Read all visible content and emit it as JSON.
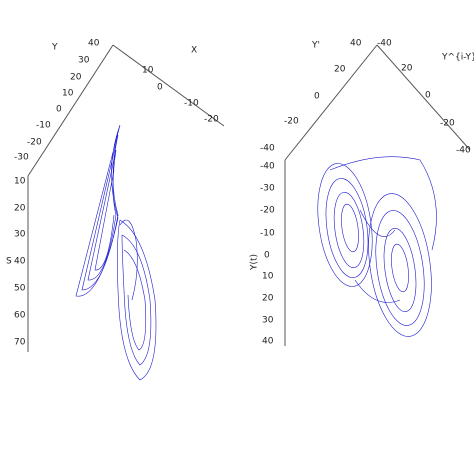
{
  "left_panel": {
    "axis_y": "Y",
    "axis_x": "X",
    "axis_z": "S",
    "apex": "40",
    "y_ticks": [
      "30",
      "20",
      "10",
      "0",
      "-10",
      "-20",
      "-30"
    ],
    "x_ticks": [
      "10",
      "0",
      "-10",
      "-20"
    ],
    "z_ticks": [
      "10",
      "20",
      "30",
      "40",
      "50",
      "60",
      "70"
    ]
  },
  "right_panel": {
    "axis_left": "Y'",
    "axis_right": "Y^{i-Y}",
    "axis_z": "Y(t)",
    "apex_left": "40",
    "apex_right": "-40",
    "left_ticks": [
      "20",
      "0",
      "-20",
      "-40"
    ],
    "right_ticks": [
      "20",
      "0",
      "-20",
      "-40"
    ],
    "z_ticks": [
      "-40",
      "-30",
      "-20",
      "-10",
      "0",
      "10",
      "20",
      "30",
      "40"
    ]
  }
}
